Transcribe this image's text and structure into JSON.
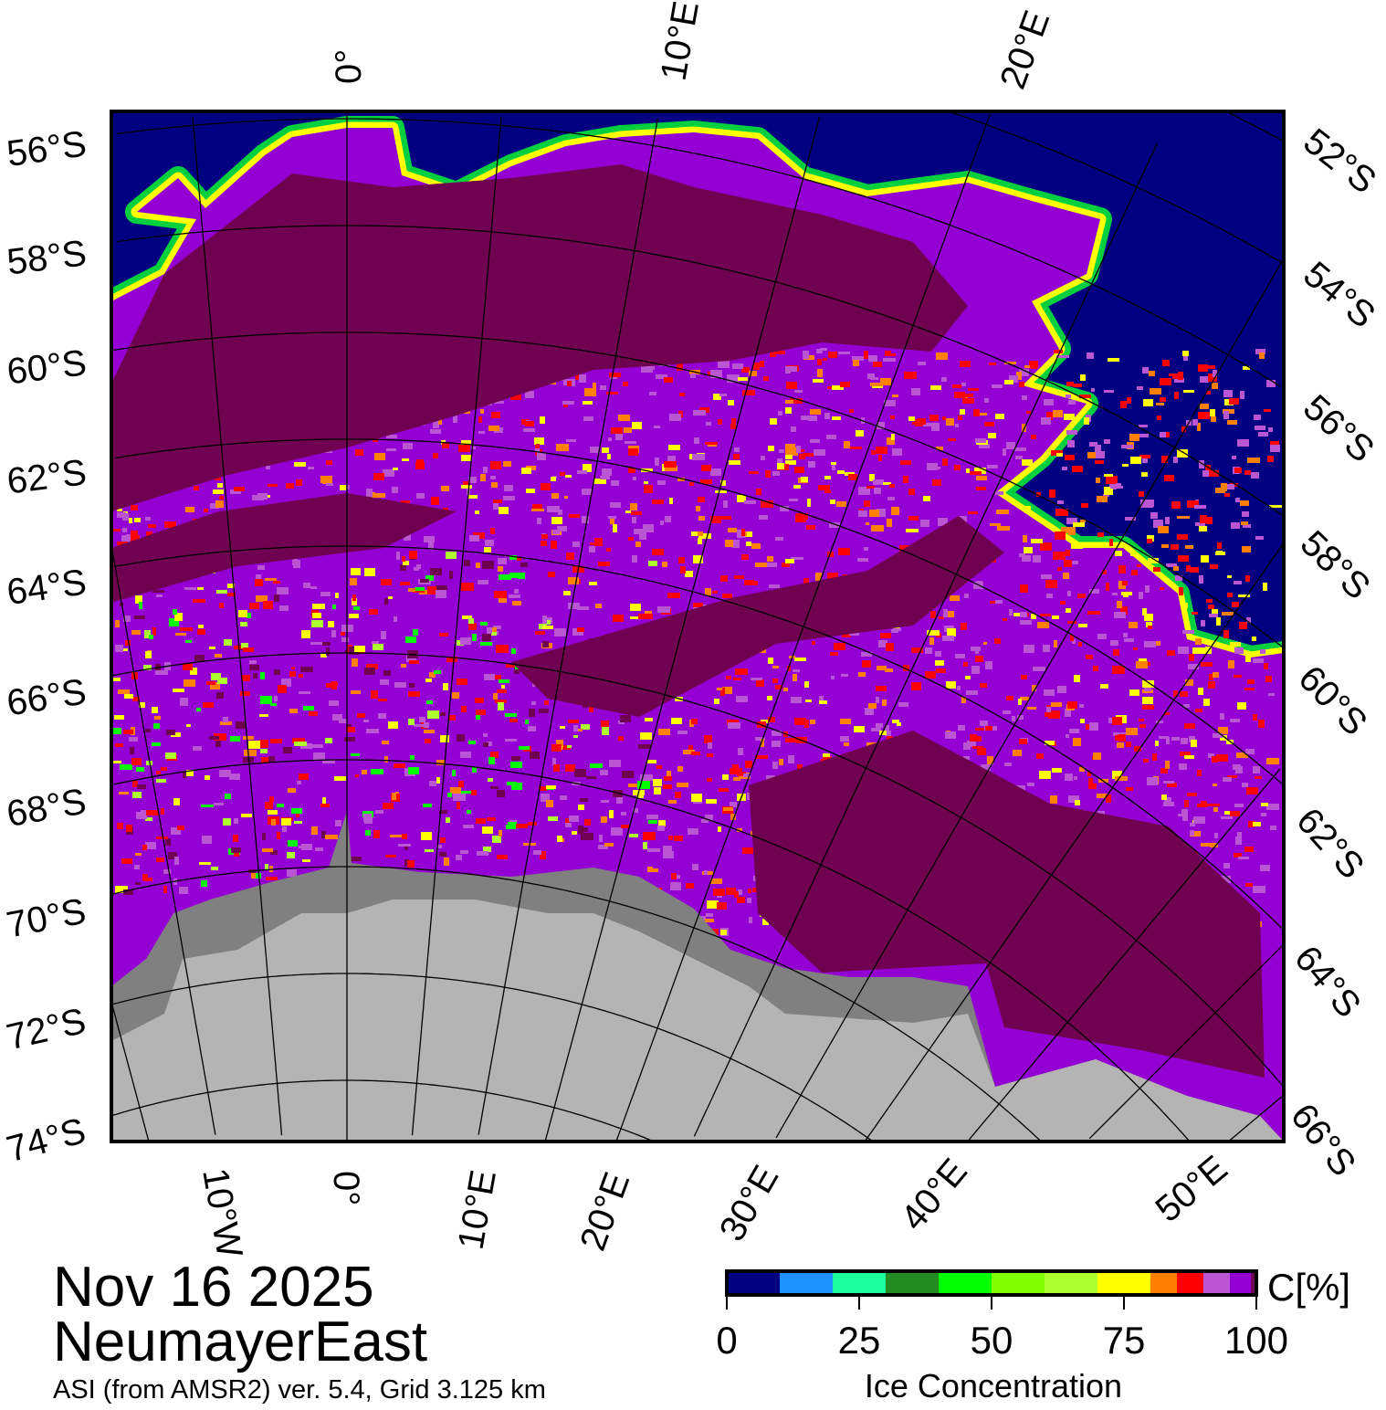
{
  "title": {
    "date": "Nov 16 2025",
    "region": "NeumayerEast",
    "subtitle": "ASI (from AMSR2) ver. 5.4,  Grid 3.125 km"
  },
  "map": {
    "left_lat_labels": [
      "56°S",
      "58°S",
      "60°S",
      "62°S",
      "64°S",
      "66°S",
      "68°S",
      "70°S",
      "72°S",
      "74°S"
    ],
    "right_lat_labels": [
      "52°S",
      "54°S",
      "56°S",
      "58°S",
      "60°S",
      "62°S",
      "64°S",
      "66°S"
    ],
    "top_lon_labels": [
      "0°",
      "10°E",
      "20°E"
    ],
    "bottom_lon_labels": [
      "10°W",
      "0°",
      "10°E",
      "20°E",
      "30°E",
      "40°E",
      "50°E"
    ],
    "colors": {
      "open_water": "#000080",
      "ice_100": "#700050",
      "land": "#b4b4b4",
      "ice_shelf": "#808080"
    }
  },
  "colorbar": {
    "unit_label": "C[%]",
    "title": "Ice Concentration",
    "ticks": [
      "0",
      "25",
      "50",
      "75",
      "100"
    ],
    "segments": [
      {
        "from": 0,
        "to": 10,
        "color": "#000080"
      },
      {
        "from": 10,
        "to": 20,
        "color": "#1e90ff"
      },
      {
        "from": 20,
        "to": 30,
        "color": "#1effa0"
      },
      {
        "from": 30,
        "to": 40,
        "color": "#228b22"
      },
      {
        "from": 40,
        "to": 50,
        "color": "#00ff00"
      },
      {
        "from": 50,
        "to": 60,
        "color": "#7fff00"
      },
      {
        "from": 60,
        "to": 70,
        "color": "#adff2f"
      },
      {
        "from": 70,
        "to": 80,
        "color": "#ffff00"
      },
      {
        "from": 80,
        "to": 85,
        "color": "#ff8000"
      },
      {
        "from": 85,
        "to": 90,
        "color": "#ff0000"
      },
      {
        "from": 90,
        "to": 95,
        "color": "#ba55d3"
      },
      {
        "from": 95,
        "to": 99,
        "color": "#9400d3"
      },
      {
        "from": 99,
        "to": 100,
        "color": "#700050"
      }
    ]
  }
}
